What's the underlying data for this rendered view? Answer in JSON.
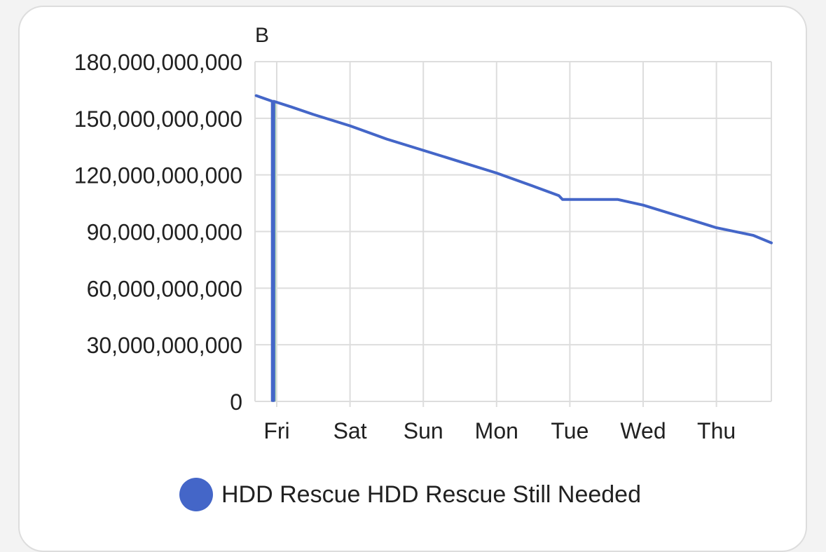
{
  "chart_data": {
    "type": "line",
    "unit_label": "B",
    "x_categories": [
      "Fri",
      "Sat",
      "Sun",
      "Mon",
      "Tue",
      "Wed",
      "Thu"
    ],
    "x_range_days": [
      -0.28,
      6.75
    ],
    "y_ticks": [
      0,
      30000000000,
      60000000000,
      90000000000,
      120000000000,
      150000000000,
      180000000000
    ],
    "y_tick_labels": [
      "0",
      "30,000,000,000",
      "60,000,000,000",
      "90,000,000,000",
      "120,000,000,000",
      "150,000,000,000",
      "180,000,000,000"
    ],
    "ylim": [
      0,
      180000000000
    ],
    "grid": true,
    "legend_position": "bottom",
    "series": [
      {
        "name": "HDD Rescue HDD Rescue Still Needed",
        "color": "#4466c8",
        "points": [
          [
            -0.28,
            162000000000
          ],
          [
            -0.06,
            159000000000
          ],
          [
            -0.06,
            500000000
          ],
          [
            -0.04,
            500000000
          ],
          [
            -0.04,
            159000000000
          ],
          [
            0.2,
            156000000000
          ],
          [
            0.5,
            152000000000
          ],
          [
            1.0,
            146000000000
          ],
          [
            1.5,
            139000000000
          ],
          [
            2.0,
            133000000000
          ],
          [
            2.5,
            127000000000
          ],
          [
            3.0,
            121000000000
          ],
          [
            3.5,
            114000000000
          ],
          [
            3.85,
            109000000000
          ],
          [
            3.9,
            107000000000
          ],
          [
            4.65,
            107000000000
          ],
          [
            5.0,
            104000000000
          ],
          [
            5.5,
            98000000000
          ],
          [
            6.0,
            92000000000
          ],
          [
            6.5,
            88000000000
          ],
          [
            6.75,
            84000000000
          ]
        ]
      }
    ]
  }
}
